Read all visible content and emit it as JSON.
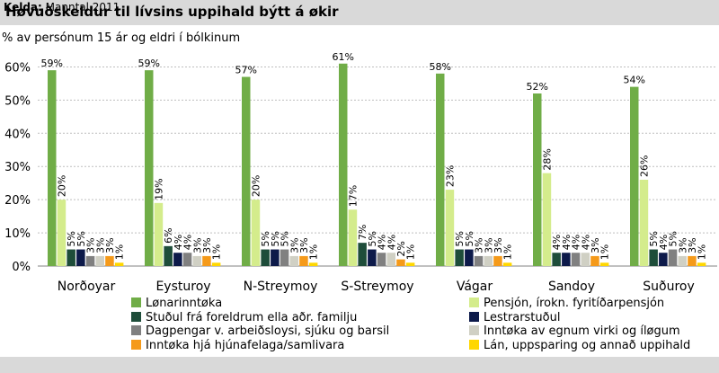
{
  "title": "Høvuðskeldur til lívsins uppihald býtt á økir",
  "subtitle": "% av persónum 15 ár og eldri í bólkinum",
  "source": {
    "label": "Kelda:",
    "text": "Manntal 2011"
  },
  "chart_data": {
    "type": "bar",
    "categories": [
      "Norðoyar",
      "Eysturoy",
      "N-Streymoy",
      "S-Streymoy",
      "Vágar",
      "Sandoy",
      "Suðuroy"
    ],
    "y_ticks": [
      "0%",
      "10%",
      "20%",
      "30%",
      "40%",
      "50%",
      "60%"
    ],
    "ylim": [
      0,
      65
    ],
    "legend_position": "bottom",
    "series": [
      {
        "name": "Lønarinntøka",
        "color": "#70ad47",
        "values": [
          59,
          59,
          57,
          61,
          58,
          52,
          54
        ],
        "labels": [
          "59%",
          "59%",
          "57%",
          "61%",
          "58%",
          "52%",
          "54%"
        ]
      },
      {
        "name": "Pensjón, írokn. fyritíðarpensjón",
        "color": "#d4ec8c",
        "values": [
          20,
          19,
          20,
          17,
          23,
          28,
          26
        ],
        "labels": [
          "20%",
          "19%",
          "20%",
          "17%",
          "23%",
          "28%",
          "26%"
        ]
      },
      {
        "name": "Stuðul frá foreldrum ella aðr. familju",
        "color": "#1e4d3a",
        "values": [
          5,
          6,
          5,
          7,
          5,
          4,
          5
        ],
        "labels": [
          "5%",
          "6%",
          "5%",
          "7%",
          "5%",
          "4%",
          "5%"
        ]
      },
      {
        "name": "Lestrarstuðul",
        "color": "#0d1a4a",
        "values": [
          5,
          4,
          5,
          5,
          5,
          4,
          4
        ],
        "labels": [
          "5%",
          "4%",
          "5%",
          "5%",
          "5%",
          "4%",
          "4%"
        ]
      },
      {
        "name": "Dagpengar v. arbeiðsloysi, sjúku og barsil",
        "color": "#808080",
        "values": [
          3,
          4,
          5,
          4,
          3,
          4,
          5
        ],
        "labels": [
          "3%",
          "4%",
          "5%",
          "4%",
          "3%",
          "4%",
          "5%"
        ]
      },
      {
        "name": "Inntøka av egnum virki og íløgum",
        "color": "#d0d0c4",
        "values": [
          3,
          3,
          3,
          4,
          3,
          4,
          3
        ],
        "labels": [
          "3%",
          "3%",
          "3%",
          "4%",
          "3%",
          "4%",
          "3%"
        ]
      },
      {
        "name": "Inntøka hjá hjúnafelaga/samlivara",
        "color": "#f59a1a",
        "values": [
          3,
          3,
          3,
          2,
          3,
          3,
          3
        ],
        "labels": [
          "3%",
          "3%",
          "3%",
          "2%",
          "3%",
          "3%",
          "3%"
        ]
      },
      {
        "name": "Lán, uppsparing og annað uppihald",
        "color": "#ffd700",
        "values": [
          1,
          1,
          1,
          1,
          1,
          1,
          1
        ],
        "labels": [
          "1%",
          "1%",
          "1%",
          "1%",
          "1%",
          "1%",
          "1%"
        ]
      }
    ]
  }
}
